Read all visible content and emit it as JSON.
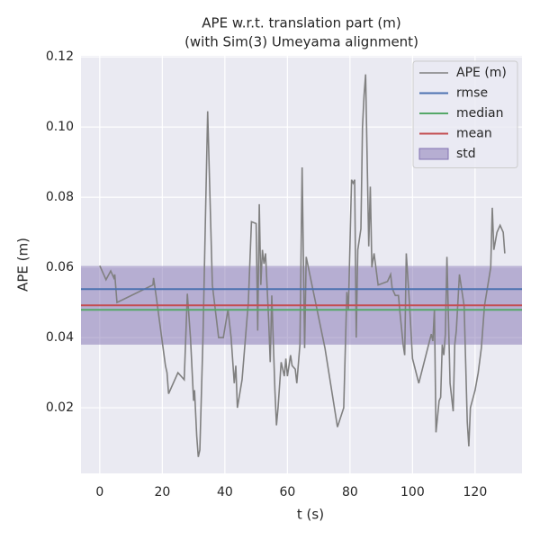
{
  "chart_data": {
    "type": "line",
    "title": "APE w.r.t. translation part (m)",
    "subtitle": "(with Sim(3) Umeyama alignment)",
    "x_label": "t (s)",
    "y_label": "APE (m)",
    "xlim": [
      -6,
      135
    ],
    "ylim": [
      0.0013,
      0.1203
    ],
    "xticks": [
      0,
      20,
      40,
      60,
      80,
      100,
      120
    ],
    "yticks": [
      0.02,
      0.04,
      0.06,
      0.08,
      {
        "value": 0.1,
        "label": "0.10"
      },
      0.12
    ],
    "grid": true,
    "legend": "upper right",
    "series": [
      {
        "name": "APE (m)",
        "color": "#808080",
        "x": [
          0,
          2,
          3.5,
          4.5,
          4.8,
          5.5,
          17,
          17.2,
          18,
          19.5,
          21,
          21.5,
          22,
          25,
          27,
          28,
          29,
          30,
          30.3,
          31,
          31.5,
          32,
          33,
          34.5,
          36,
          38,
          39.5,
          41,
          42,
          43,
          43.5,
          44,
          45.5,
          47.5,
          48.5,
          50,
          50.5,
          51,
          51.5,
          52,
          52.5,
          53,
          54,
          54.5,
          55,
          56,
          56.5,
          57,
          58,
          59,
          59.5,
          60,
          61,
          61.5,
          62.5,
          63,
          64,
          64.7,
          65.5,
          66,
          69,
          72,
          76,
          78,
          79,
          79.5,
          80.5,
          81,
          81.5,
          82,
          82.5,
          83.5,
          84,
          84.5,
          85,
          86,
          86.5,
          87,
          87.7,
          89,
          92,
          93,
          93.5,
          94.5,
          95.5,
          96,
          97,
          97.5,
          98,
          99,
          100,
          102,
          106,
          106.5,
          107,
          107.5,
          108.5,
          109,
          109.5,
          110,
          110.5,
          111,
          112,
          113,
          113.5,
          114,
          115,
          116.5,
          117.5,
          118,
          118.5,
          120,
          121,
          122,
          123,
          125,
          125.5,
          126,
          127,
          128,
          129,
          129.5
        ],
        "values": [
          0.0605,
          0.0565,
          0.059,
          0.057,
          0.058,
          0.05,
          0.055,
          0.057,
          0.052,
          0.042,
          0.032,
          0.03,
          0.024,
          0.03,
          0.028,
          0.0525,
          0.04,
          0.022,
          0.025,
          0.012,
          0.006,
          0.008,
          0.04,
          0.1045,
          0.055,
          0.04,
          0.04,
          0.048,
          0.04,
          0.027,
          0.032,
          0.02,
          0.028,
          0.05,
          0.073,
          0.0725,
          0.042,
          0.078,
          0.055,
          0.065,
          0.061,
          0.064,
          0.045,
          0.033,
          0.052,
          0.025,
          0.015,
          0.02,
          0.033,
          0.029,
          0.034,
          0.029,
          0.035,
          0.032,
          0.031,
          0.027,
          0.038,
          0.0885,
          0.037,
          0.063,
          0.05,
          0.037,
          0.0145,
          0.02,
          0.053,
          0.048,
          0.085,
          0.084,
          0.085,
          0.04,
          0.065,
          0.071,
          0.1,
          0.109,
          0.115,
          0.066,
          0.083,
          0.06,
          0.064,
          0.055,
          0.056,
          0.058,
          0.054,
          0.052,
          0.052,
          0.047,
          0.038,
          0.035,
          0.064,
          0.05,
          0.034,
          0.027,
          0.041,
          0.039,
          0.048,
          0.013,
          0.022,
          0.023,
          0.038,
          0.035,
          0.041,
          0.063,
          0.027,
          0.019,
          0.038,
          0.042,
          0.058,
          0.049,
          0.016,
          0.009,
          0.02,
          0.025,
          0.03,
          0.037,
          0.049,
          0.06,
          0.077,
          0.065,
          0.07,
          0.072,
          0.07,
          0.064
        ]
      }
    ],
    "stats": [
      {
        "name": "rmse",
        "color": "#4c72b0",
        "value": 0.0538
      },
      {
        "name": "median",
        "color": "#55a868",
        "value": 0.0479
      },
      {
        "name": "mean",
        "color": "#c44e52",
        "value": 0.0492
      }
    ],
    "std": {
      "name": "std",
      "color": "#8172b2",
      "value": 0.0112
    }
  }
}
